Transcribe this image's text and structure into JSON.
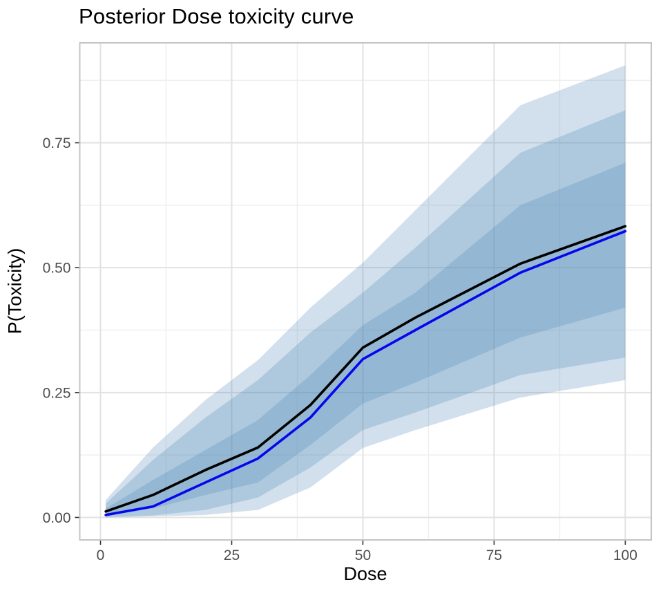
{
  "chart": {
    "title": "Posterior Dose toxicity curve",
    "x_axis": {
      "label": "Dose",
      "ticks": [
        0,
        25,
        50,
        75,
        100
      ],
      "tick_labels": [
        "0",
        "25",
        "50",
        "75",
        "100"
      ],
      "minor_ticks": [
        12.5,
        37.5,
        62.5,
        87.5
      ],
      "range": [
        -3.95,
        104.95
      ]
    },
    "y_axis": {
      "label": "P(Toxicity)",
      "ticks": [
        0,
        0.25,
        0.5,
        0.75
      ],
      "tick_labels": [
        "0.00",
        "0.25",
        "0.50",
        "0.75"
      ],
      "minor_ticks": [
        0.125,
        0.375,
        0.625,
        0.875
      ],
      "range": [
        -0.045,
        0.95
      ]
    },
    "colors": {
      "title_text": "#000000",
      "axis_title_text": "#000000",
      "tick_text": "#4d4d4d",
      "tick_mark": "#333333",
      "grid_major": "#e2e2e2",
      "grid_minor": "#efefef",
      "panel_border": "#c4c4c4",
      "panel_background": "#ffffff",
      "band_base": "#4682B4",
      "line_black": "#000000",
      "line_blue": "#0606ee"
    },
    "band_opacity_each": 0.25
  },
  "chart_data": {
    "type": "line",
    "title": "Posterior Dose toxicity curve",
    "xlabel": "Dose",
    "ylabel": "P(Toxicity)",
    "xlim": [
      -3.95,
      104.95
    ],
    "ylim": [
      -0.045,
      0.95
    ],
    "grid": "major+minor",
    "legend": "none",
    "x": [
      1,
      10,
      20,
      30,
      40,
      50,
      60,
      80,
      100
    ],
    "series": [
      {
        "name": "toxicity-curve-black",
        "color": "#000000",
        "values": [
          0.012,
          0.045,
          0.095,
          0.14,
          0.225,
          0.34,
          0.4,
          0.508,
          0.583
        ]
      },
      {
        "name": "toxicity-curve-blue",
        "color": "#0606ee",
        "values": [
          0.005,
          0.022,
          0.07,
          0.118,
          0.2,
          0.317,
          0.375,
          0.49,
          0.573
        ]
      }
    ],
    "bands": [
      {
        "name": "outer-credible-band",
        "upper": [
          0.035,
          0.14,
          0.235,
          0.315,
          0.42,
          0.51,
          0.615,
          0.825,
          0.905
        ],
        "lower": [
          0.0,
          0.002,
          0.005,
          0.015,
          0.06,
          0.139,
          0.175,
          0.24,
          0.275
        ]
      },
      {
        "name": "middle-credible-band",
        "upper": [
          0.028,
          0.115,
          0.2,
          0.275,
          0.37,
          0.45,
          0.54,
          0.73,
          0.815
        ],
        "lower": [
          0.001,
          0.004,
          0.015,
          0.04,
          0.1,
          0.175,
          0.21,
          0.285,
          0.32
        ]
      },
      {
        "name": "inner-credible-band",
        "upper": [
          0.018,
          0.075,
          0.135,
          0.195,
          0.285,
          0.385,
          0.45,
          0.625,
          0.71
        ],
        "lower": [
          0.003,
          0.018,
          0.045,
          0.07,
          0.145,
          0.228,
          0.27,
          0.36,
          0.42
        ]
      }
    ]
  }
}
